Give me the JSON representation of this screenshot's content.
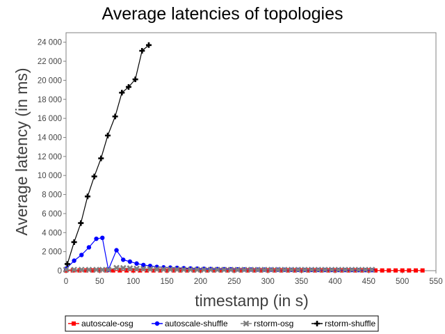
{
  "chart_data": {
    "type": "line",
    "title": "Average latencies of topologies",
    "xlabel": "timestamp (in s)",
    "ylabel": "Average latency (in ms)",
    "xlim": [
      0,
      550
    ],
    "ylim": [
      0,
      25000
    ],
    "x_ticks": [
      0,
      50,
      100,
      150,
      200,
      250,
      300,
      350,
      400,
      450,
      500,
      550
    ],
    "y_ticks": [
      0,
      2000,
      4000,
      6000,
      8000,
      10000,
      12000,
      14000,
      16000,
      18000,
      20000,
      22000,
      24000
    ],
    "x_tick_labels": [
      "0",
      "50",
      "100",
      "150",
      "200",
      "250",
      "300",
      "350",
      "400",
      "450",
      "500",
      "550"
    ],
    "y_tick_labels": [
      "0",
      "2 000",
      "4 000",
      "6 000",
      "8 000",
      "10 000",
      "12 000",
      "14 000",
      "16 000",
      "18 000",
      "20 000",
      "22 000",
      "24 000"
    ],
    "grid": false,
    "legend_position": "bottom",
    "series": [
      {
        "name": "autoscale-osg",
        "color": "#ff0000",
        "marker": "square",
        "x": [
          0,
          10,
          20,
          30,
          40,
          50,
          60,
          70,
          80,
          90,
          100,
          110,
          120,
          130,
          140,
          150,
          160,
          170,
          180,
          190,
          200,
          210,
          220,
          230,
          240,
          250,
          260,
          270,
          280,
          290,
          300,
          310,
          320,
          330,
          340,
          350,
          360,
          370,
          380,
          390,
          400,
          410,
          420,
          430,
          440,
          450,
          460,
          470,
          480,
          490,
          500,
          510,
          520,
          530
        ],
        "y": [
          20,
          25,
          25,
          25,
          25,
          25,
          25,
          25,
          25,
          25,
          25,
          25,
          25,
          25,
          25,
          25,
          25,
          25,
          25,
          25,
          25,
          25,
          25,
          25,
          25,
          25,
          25,
          25,
          25,
          25,
          25,
          25,
          25,
          25,
          25,
          25,
          25,
          25,
          25,
          25,
          25,
          25,
          25,
          25,
          25,
          25,
          25,
          25,
          25,
          25,
          25,
          25,
          25,
          25
        ]
      },
      {
        "name": "autoscale-shuffle",
        "color": "#0000ff",
        "marker": "circle",
        "x": [
          0,
          12,
          23,
          34,
          45,
          54,
          63,
          75,
          85,
          95,
          105,
          115,
          125,
          135,
          145,
          155,
          165,
          175,
          185,
          195,
          205,
          215,
          225,
          235,
          245,
          255,
          265,
          275,
          285,
          295,
          305,
          315,
          325,
          335,
          345,
          355,
          365,
          375,
          385,
          395,
          405,
          415,
          425,
          435,
          445,
          455
        ],
        "y": [
          200,
          1050,
          1650,
          2450,
          3350,
          3450,
          100,
          2150,
          1150,
          950,
          750,
          600,
          500,
          400,
          350,
          320,
          300,
          260,
          230,
          210,
          200,
          180,
          170,
          160,
          150,
          140,
          130,
          120,
          115,
          110,
          105,
          100,
          95,
          90,
          85,
          80,
          78,
          76,
          74,
          72,
          70,
          68,
          66,
          64,
          62,
          60
        ]
      },
      {
        "name": "rstorm-osg",
        "color": "#808080",
        "marker": "x",
        "x": [
          0,
          12,
          23,
          34,
          45,
          54,
          63,
          75,
          85,
          95,
          105,
          115,
          125,
          135,
          145,
          155,
          165,
          175,
          185,
          195,
          205,
          215,
          225,
          235,
          245,
          255,
          265,
          275,
          285,
          295,
          305,
          315,
          325,
          335,
          345,
          355,
          365,
          375,
          385,
          395,
          405,
          415,
          425,
          435,
          445,
          455
        ],
        "y": [
          100,
          100,
          100,
          100,
          100,
          100,
          100,
          300,
          280,
          250,
          220,
          200,
          180,
          160,
          150,
          140,
          130,
          120,
          110,
          105,
          100,
          100,
          100,
          100,
          100,
          100,
          100,
          100,
          100,
          100,
          100,
          100,
          100,
          100,
          100,
          100,
          100,
          100,
          100,
          100,
          100,
          100,
          100,
          100,
          100,
          100
        ]
      },
      {
        "name": "rstorm-shuffle",
        "color": "#000000",
        "marker": "plus",
        "x": [
          2,
          12,
          22,
          32,
          42,
          52,
          62,
          73,
          83,
          93,
          103,
          113,
          123
        ],
        "y": [
          700,
          3000,
          5000,
          7800,
          9900,
          11800,
          14200,
          16200,
          18700,
          19300,
          20100,
          23100,
          23700
        ]
      }
    ]
  }
}
